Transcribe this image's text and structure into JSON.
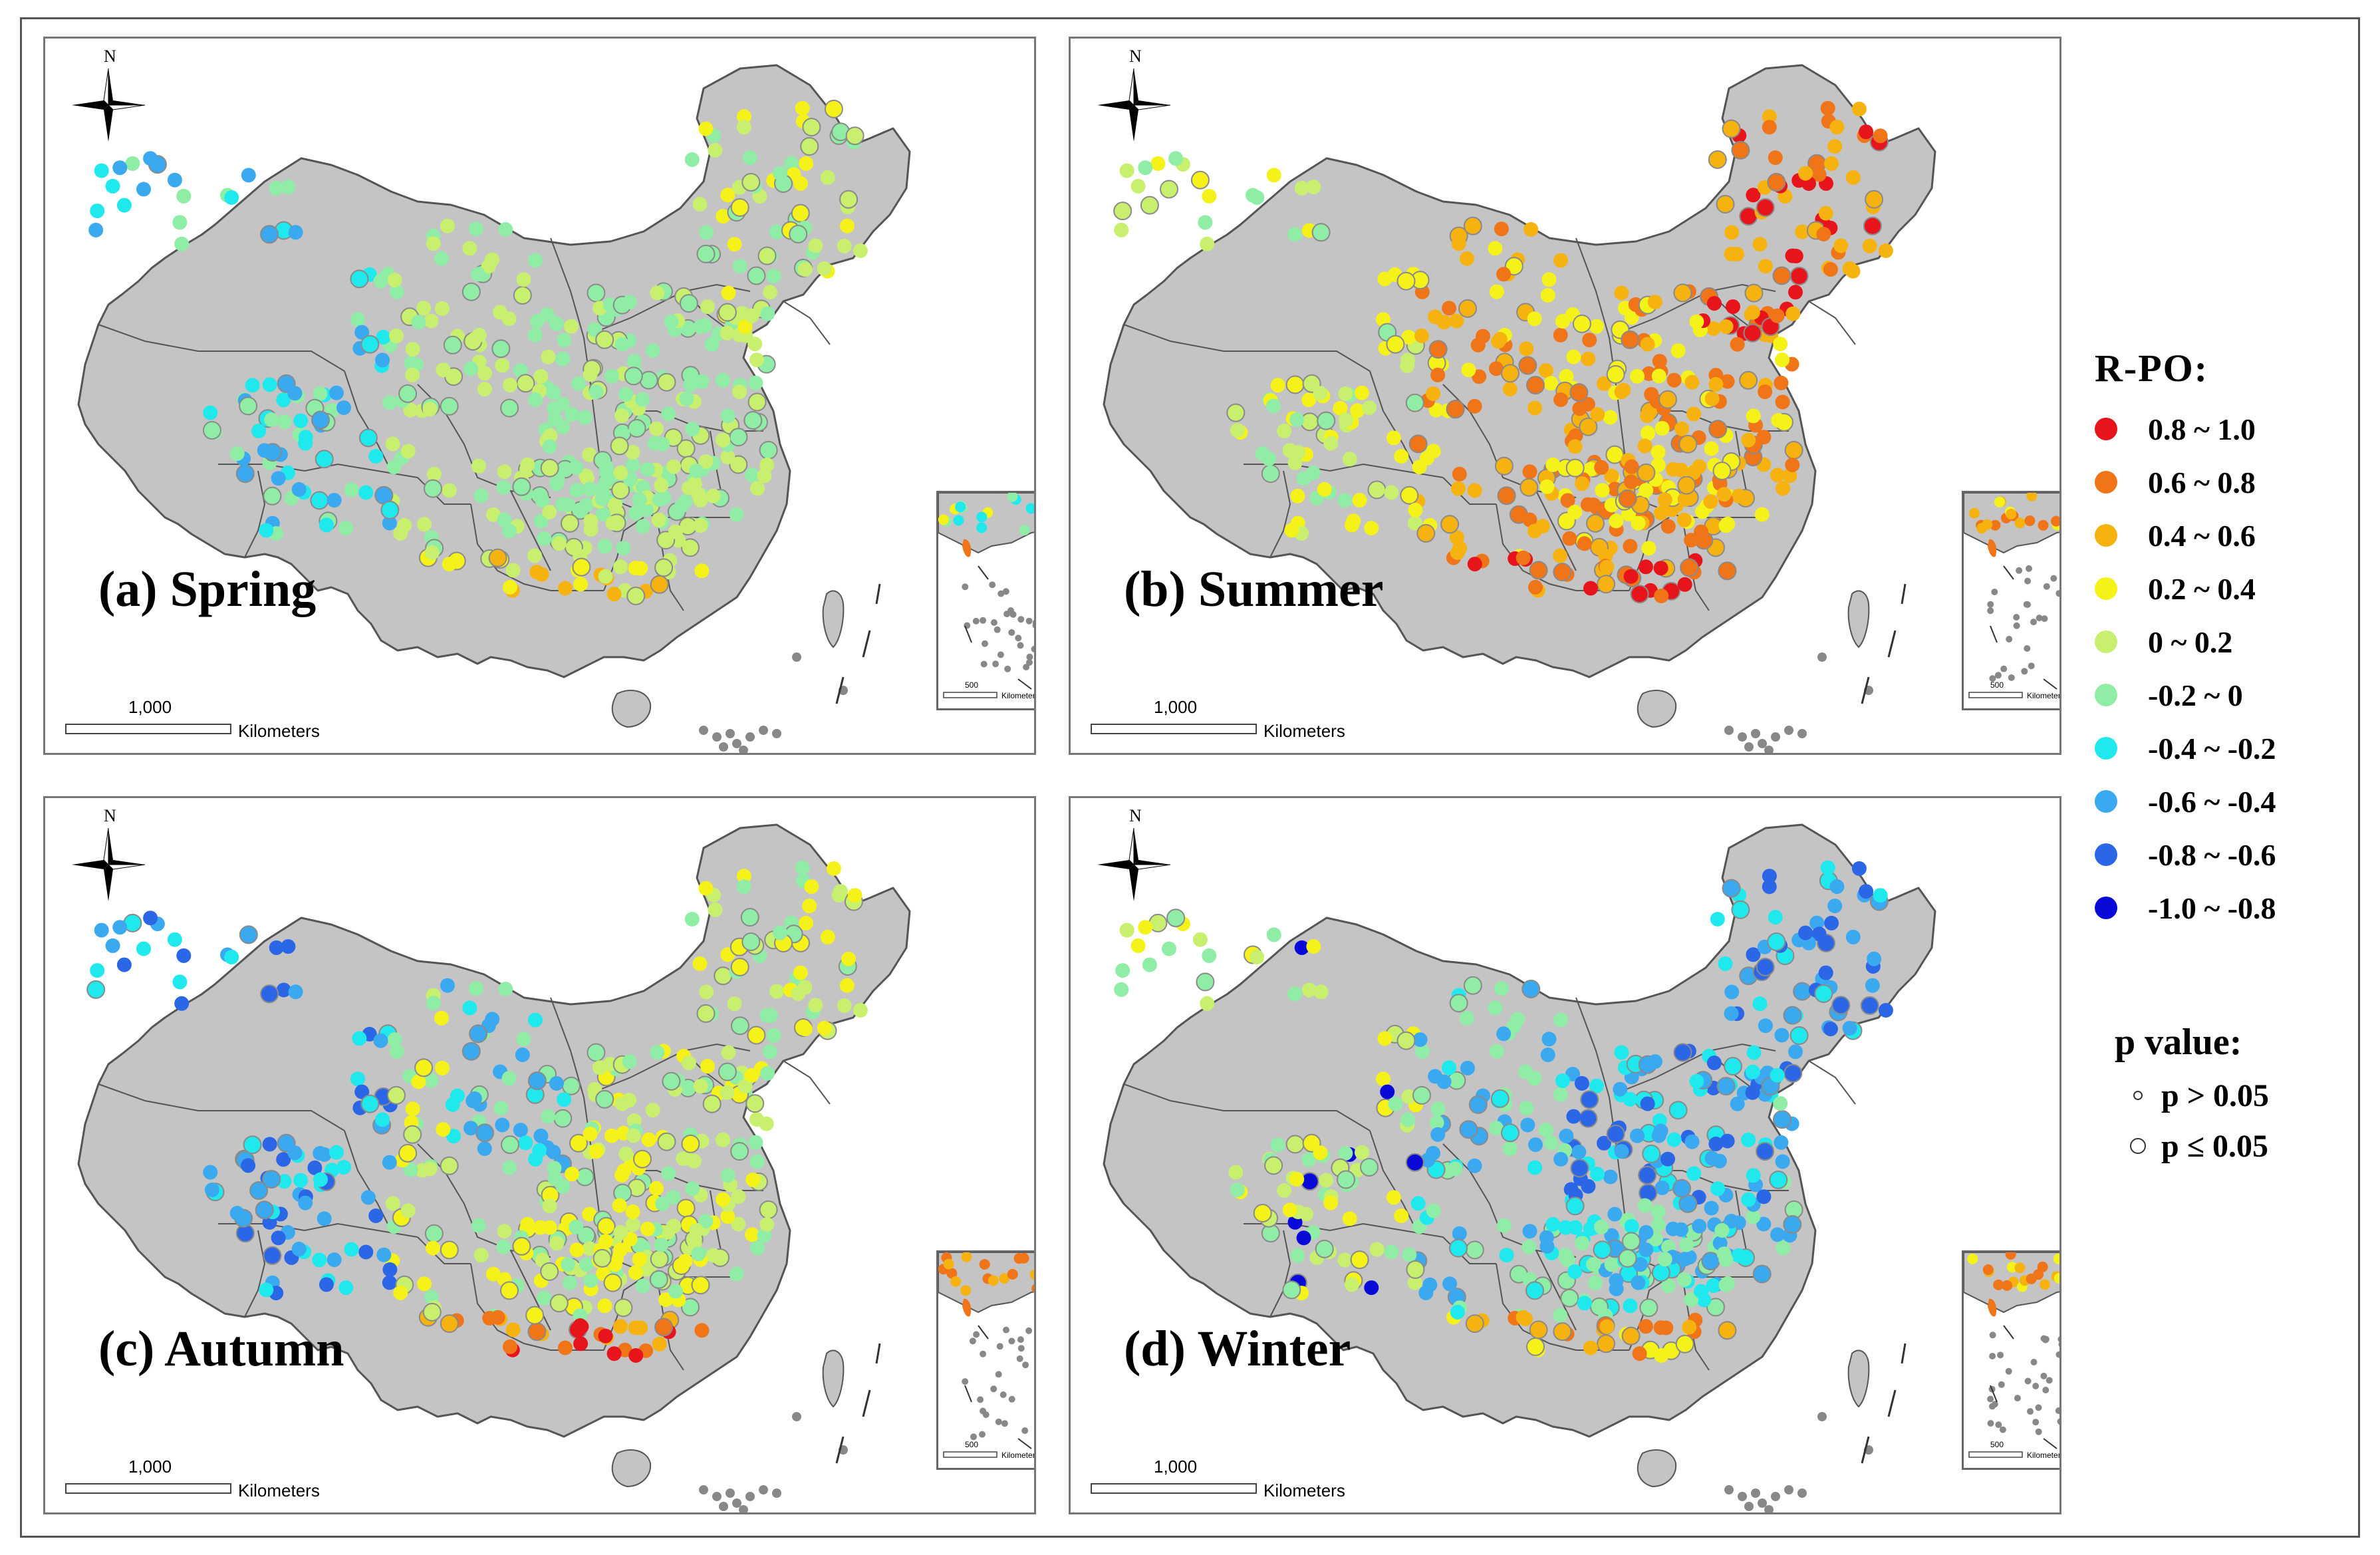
{
  "panels": [
    {
      "id": "spring",
      "label": "(a) Spring",
      "scale_num": "1,000",
      "scale_unit": "Kilometers",
      "inset_scale_num": "500",
      "inset_scale_unit": "Kilometers",
      "north": "N"
    },
    {
      "id": "summer",
      "label": "(b) Summer",
      "scale_num": "1,000",
      "scale_unit": "Kilometers",
      "inset_scale_num": "500",
      "inset_scale_unit": "Kilometers",
      "north": "N"
    },
    {
      "id": "autumn",
      "label": "(c) Autumn",
      "scale_num": "1,000",
      "scale_unit": "Kilometers",
      "inset_scale_num": "500",
      "inset_scale_unit": "Kilometers",
      "north": "N"
    },
    {
      "id": "winter",
      "label": "(d) Winter",
      "scale_num": "1,000",
      "scale_unit": "Kilometers",
      "inset_scale_num": "500",
      "inset_scale_unit": "Kilometers",
      "north": "N"
    }
  ],
  "legend": {
    "title": "R-PO:",
    "classes": [
      {
        "label": "0.8 ~ 1.0",
        "color": "#e8141b"
      },
      {
        "label": "0.6 ~ 0.8",
        "color": "#f07418"
      },
      {
        "label": "0.4 ~ 0.6",
        "color": "#f6b30f"
      },
      {
        "label": "0.2 ~ 0.4",
        "color": "#f5f21a"
      },
      {
        "label": "0 ~ 0.2",
        "color": "#c8f06e"
      },
      {
        "label": "-0.2 ~ 0",
        "color": "#90eda5"
      },
      {
        "label": "-0.4 ~ -0.2",
        "color": "#1fe9ec"
      },
      {
        "label": "-0.6 ~ -0.4",
        "color": "#3aa9ef"
      },
      {
        "label": "-0.8 ~ -0.6",
        "color": "#2b66e6"
      },
      {
        "label": "-1.0 ~ -0.8",
        "color": "#0a0ad8"
      }
    ]
  },
  "pvalue": {
    "title": "p value:",
    "items": [
      {
        "label": "p > 0.05",
        "size": "small"
      },
      {
        "label": "p ≤ 0.05",
        "size": "large"
      }
    ]
  },
  "colors": {
    "land": "#c4c4c4",
    "border": "#555555",
    "sea": "#ffffff"
  }
}
